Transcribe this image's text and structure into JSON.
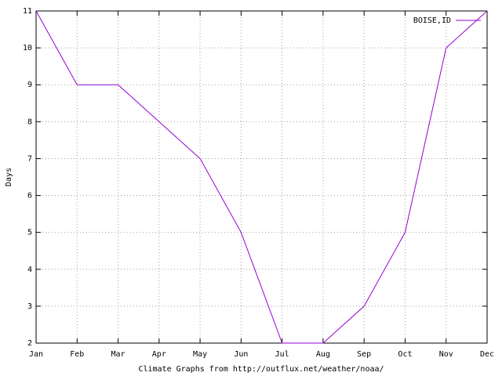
{
  "chart_data": {
    "type": "line",
    "ylabel": "Days",
    "xlabel": "Climate Graphs from http://outflux.net/weather/noaa/",
    "categories": [
      "Jan",
      "Feb",
      "Mar",
      "Apr",
      "May",
      "Jun",
      "Jul",
      "Aug",
      "Sep",
      "Oct",
      "Nov",
      "Dec"
    ],
    "series": [
      {
        "name": "BOISE,ID",
        "color": "#9400d3",
        "values": [
          11,
          9,
          9,
          8,
          7,
          5,
          2,
          2,
          3,
          5,
          10,
          11
        ]
      }
    ],
    "ylim": [
      2,
      11
    ],
    "yticks": [
      2,
      3,
      4,
      5,
      6,
      7,
      8,
      9,
      10,
      11
    ],
    "grid": true,
    "legend": "top-right"
  }
}
